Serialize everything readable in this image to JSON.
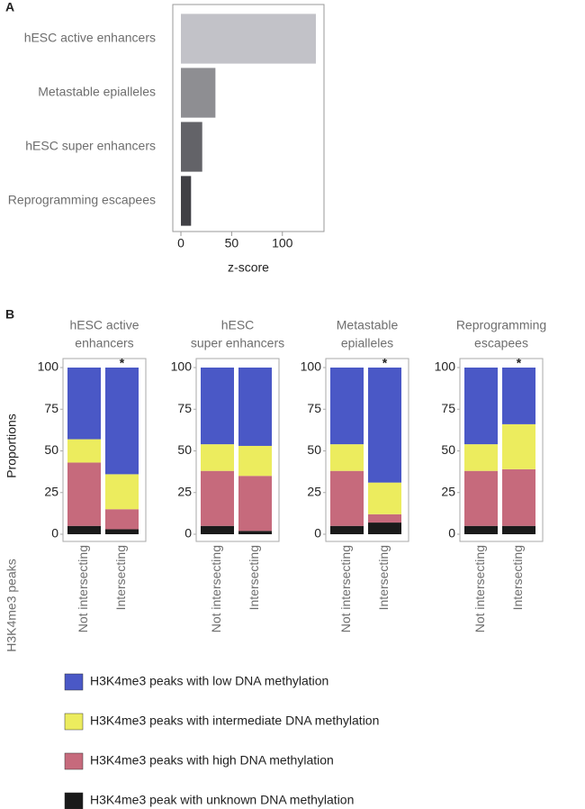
{
  "chart_data": [
    {
      "type": "hbar",
      "panel_label": "A",
      "categories": [
        "hESC active enhancers",
        "Metastable epialleles",
        "hESC super enhancers",
        "Reprogramming escapees"
      ],
      "values": [
        133,
        34,
        21,
        10
      ],
      "colors": [
        "#c2c2c8",
        "#8e8e92",
        "#636368",
        "#404045"
      ],
      "xlabel": "z-score",
      "xlim": [
        -8,
        141
      ],
      "xticks": [
        0,
        50,
        100
      ]
    },
    {
      "type": "stacked-bar",
      "panel_label": "B",
      "ylabel": "Proportions",
      "xlabel": "H3K4me3 peaks",
      "categories": [
        "Not intersecting",
        "Intersecting"
      ],
      "ylim": [
        0,
        100
      ],
      "yticks": [
        0,
        25,
        50,
        75,
        100
      ],
      "series": [
        {
          "name": "H3K4me3 peaks with low DNA methylation",
          "color": "#4a58c6"
        },
        {
          "name": "H3K4me3 peaks with intermediate DNA methylation",
          "color": "#ecec5e"
        },
        {
          "name": "H3K4me3 peaks with high DNA methylation",
          "color": "#c66a7c"
        },
        {
          "name": "H3K4me3 peak with unknown DNA methylation",
          "color": "#1a1a1a"
        }
      ],
      "panels": [
        {
          "title": [
            "hESC active",
            "enhancers"
          ],
          "values": [
            [
              43,
              64
            ],
            [
              14,
              21
            ],
            [
              38,
              12
            ],
            [
              5,
              3
            ]
          ],
          "annotation": {
            "text": "*",
            "category": 1
          }
        },
        {
          "title": [
            "hESC",
            "super enhancers"
          ],
          "values": [
            [
              46,
              47
            ],
            [
              16,
              18
            ],
            [
              33,
              33
            ],
            [
              5,
              2
            ]
          ]
        },
        {
          "title": [
            "Metastable",
            "epialleles"
          ],
          "values": [
            [
              46,
              69
            ],
            [
              16,
              19
            ],
            [
              33,
              5
            ],
            [
              5,
              7
            ]
          ],
          "annotation": {
            "text": "*",
            "category": 1
          }
        },
        {
          "title": [
            "Reprogramming",
            "escapees"
          ],
          "values": [
            [
              46,
              34
            ],
            [
              16,
              27
            ],
            [
              33,
              34
            ],
            [
              5,
              5
            ]
          ],
          "annotation": {
            "text": "*",
            "category": 1
          }
        }
      ]
    }
  ]
}
